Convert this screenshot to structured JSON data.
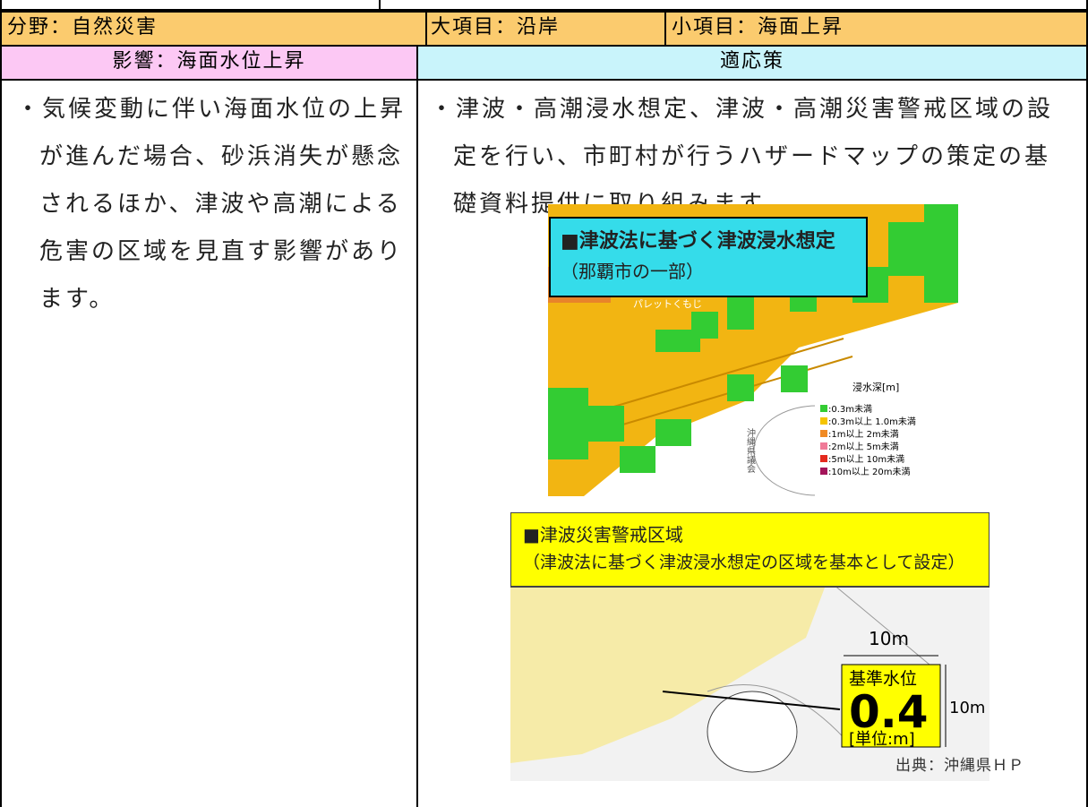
{
  "header": {
    "field": "分野：自然災害",
    "major": "大項目：沿岸",
    "minor": "小項目：海面上昇"
  },
  "columns": {
    "impact": "影響：海面水位上昇",
    "measures": "適応策"
  },
  "impact_text": [
    "・気候変動に伴い海面水位の上昇",
    "が進んだ場合、砂浜消失が懸念",
    "されるほか、津波や高潮による",
    "危害の区域を見直す影響があり",
    "ます。"
  ],
  "measures_text": [
    "・津波・高潮浸水想定、津波・高潮災害警戒区域の設",
    "定を行い、市町村が行うハザードマップの策定の基",
    "礎資料提供に取り組みます。"
  ],
  "map1": {
    "title": "■津波法に基づく津波浸水想定",
    "subtitle": "（那覇市の一部）",
    "legend_title": "浸水深[m]",
    "legend": [
      {
        "color": "#33cc33",
        "label": ":0.3m未満"
      },
      {
        "color": "#f5c400",
        "label": ":0.3m以上  1.0m未満"
      },
      {
        "color": "#f08a24",
        "label": ":1m以上  2m未満"
      },
      {
        "color": "#f07a98",
        "label": ":2m以上  5m未満"
      },
      {
        "color": "#e42a1e",
        "label": ":5m以上  10m未満"
      },
      {
        "color": "#a3145a",
        "label": ":10m以上  20m未満"
      }
    ],
    "labels": [
      "パレットくもじ",
      "沖縄県議会"
    ]
  },
  "map2": {
    "title": "■津波災害警戒区域",
    "subtitle": "（津波法に基づく津波浸水想定の区域を基本として設定）",
    "width_label": "10m",
    "height_label": "10m",
    "box_title": "基準水位",
    "box_value": "0.4",
    "box_unit": "[単位:m]"
  },
  "source": "出典：沖縄県ＨＰ"
}
